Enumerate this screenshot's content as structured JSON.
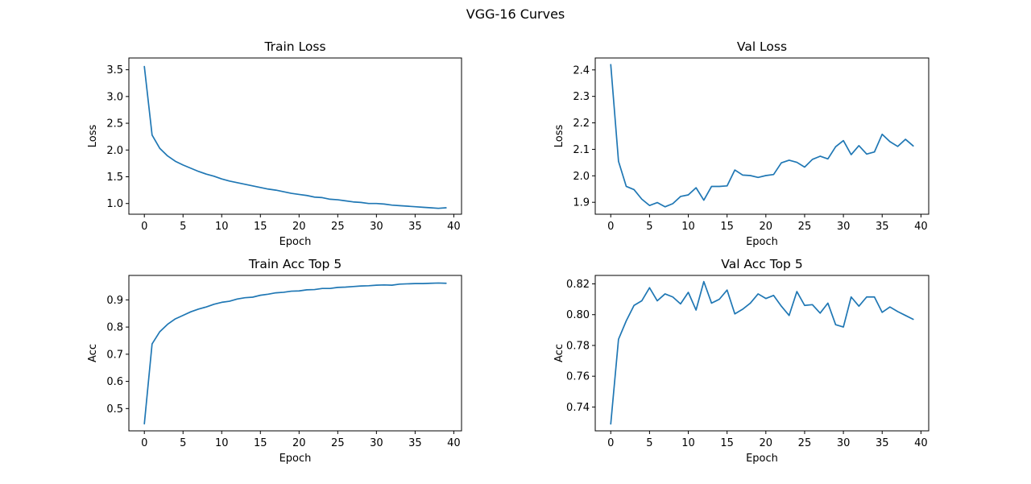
{
  "figure": {
    "title": "VGG-16 Curves"
  },
  "colors": {
    "line": "#1f77b4",
    "axes": "#000000",
    "background": "#ffffff"
  },
  "chart_data": [
    {
      "type": "line",
      "title": "Train Loss",
      "xlabel": "Epoch",
      "ylabel": "Loss",
      "xlim": [
        -2,
        41
      ],
      "ylim": [
        0.8,
        3.72
      ],
      "xticks": [
        0,
        5,
        10,
        15,
        20,
        25,
        30,
        35,
        40
      ],
      "yticks": [
        1.0,
        1.5,
        2.0,
        2.5,
        3.0,
        3.5
      ],
      "yticklabels": [
        "1.0",
        "1.5",
        "2.0",
        "2.5",
        "3.0",
        "3.5"
      ],
      "grid": false,
      "x": [
        0,
        1,
        2,
        3,
        4,
        5,
        6,
        7,
        8,
        9,
        10,
        11,
        12,
        13,
        14,
        15,
        16,
        17,
        18,
        19,
        20,
        21,
        22,
        23,
        24,
        25,
        26,
        27,
        28,
        29,
        30,
        31,
        32,
        33,
        34,
        35,
        36,
        37,
        38,
        39
      ],
      "values": [
        3.56,
        2.28,
        2.03,
        1.89,
        1.79,
        1.72,
        1.66,
        1.6,
        1.55,
        1.51,
        1.46,
        1.42,
        1.39,
        1.36,
        1.33,
        1.3,
        1.27,
        1.25,
        1.22,
        1.19,
        1.17,
        1.15,
        1.12,
        1.11,
        1.08,
        1.07,
        1.05,
        1.03,
        1.02,
        1.0,
        1.0,
        0.99,
        0.97,
        0.96,
        0.95,
        0.94,
        0.93,
        0.92,
        0.91,
        0.92
      ]
    },
    {
      "type": "line",
      "title": "Val Loss",
      "xlabel": "Epoch",
      "ylabel": "Loss",
      "xlim": [
        -2,
        41
      ],
      "ylim": [
        1.855,
        2.445
      ],
      "xticks": [
        0,
        5,
        10,
        15,
        20,
        25,
        30,
        35,
        40
      ],
      "yticks": [
        1.9,
        2.0,
        2.1,
        2.2,
        2.3,
        2.4
      ],
      "yticklabels": [
        "1.9",
        "2.0",
        "2.1",
        "2.2",
        "2.3",
        "2.4"
      ],
      "grid": false,
      "x": [
        0,
        1,
        2,
        3,
        4,
        5,
        6,
        7,
        8,
        9,
        10,
        11,
        12,
        13,
        14,
        15,
        16,
        17,
        18,
        19,
        20,
        21,
        22,
        23,
        24,
        25,
        26,
        27,
        28,
        29,
        30,
        31,
        32,
        33,
        34,
        35,
        36,
        37,
        38,
        39
      ],
      "values": [
        2.42,
        2.055,
        1.96,
        1.948,
        1.912,
        1.888,
        1.899,
        1.883,
        1.895,
        1.922,
        1.928,
        1.955,
        1.908,
        1.96,
        1.96,
        1.962,
        2.022,
        2.003,
        2.001,
        1.994,
        2.001,
        2.005,
        2.049,
        2.059,
        2.051,
        2.033,
        2.062,
        2.074,
        2.064,
        2.11,
        2.133,
        2.08,
        2.114,
        2.082,
        2.09,
        2.157,
        2.129,
        2.111,
        2.138,
        2.113
      ]
    },
    {
      "type": "line",
      "title": "Train Acc Top 5",
      "xlabel": "Epoch",
      "ylabel": "Acc",
      "xlim": [
        -2,
        41
      ],
      "ylim": [
        0.418,
        0.99
      ],
      "xticks": [
        0,
        5,
        10,
        15,
        20,
        25,
        30,
        35,
        40
      ],
      "yticks": [
        0.5,
        0.6,
        0.7,
        0.8,
        0.9
      ],
      "yticklabels": [
        "0.5",
        "0.6",
        "0.7",
        "0.8",
        "0.9"
      ],
      "grid": false,
      "x": [
        0,
        1,
        2,
        3,
        4,
        5,
        6,
        7,
        8,
        9,
        10,
        11,
        12,
        13,
        14,
        15,
        16,
        17,
        18,
        19,
        20,
        21,
        22,
        23,
        24,
        25,
        26,
        27,
        28,
        29,
        30,
        31,
        32,
        33,
        34,
        35,
        36,
        37,
        38,
        39
      ],
      "values": [
        0.444,
        0.738,
        0.783,
        0.81,
        0.83,
        0.843,
        0.856,
        0.866,
        0.874,
        0.884,
        0.891,
        0.895,
        0.903,
        0.908,
        0.91,
        0.917,
        0.921,
        0.926,
        0.928,
        0.932,
        0.933,
        0.937,
        0.938,
        0.942,
        0.942,
        0.946,
        0.947,
        0.949,
        0.951,
        0.952,
        0.954,
        0.955,
        0.954,
        0.958,
        0.959,
        0.96,
        0.96,
        0.961,
        0.962,
        0.961
      ]
    },
    {
      "type": "line",
      "title": "Val Acc Top 5",
      "xlabel": "Epoch",
      "ylabel": "Acc",
      "xlim": [
        -2,
        41
      ],
      "ylim": [
        0.7245,
        0.8255
      ],
      "xticks": [
        0,
        5,
        10,
        15,
        20,
        25,
        30,
        35,
        40
      ],
      "yticks": [
        0.74,
        0.76,
        0.78,
        0.8,
        0.82
      ],
      "yticklabels": [
        "0.74",
        "0.76",
        "0.78",
        "0.80",
        "0.82"
      ],
      "grid": false,
      "x": [
        0,
        1,
        2,
        3,
        4,
        5,
        6,
        7,
        8,
        9,
        10,
        11,
        12,
        13,
        14,
        15,
        16,
        17,
        18,
        19,
        20,
        21,
        22,
        23,
        24,
        25,
        26,
        27,
        28,
        29,
        30,
        31,
        32,
        33,
        34,
        35,
        36,
        37,
        38,
        39
      ],
      "values": [
        0.729,
        0.784,
        0.796,
        0.806,
        0.809,
        0.8175,
        0.809,
        0.8135,
        0.8115,
        0.807,
        0.8145,
        0.803,
        0.8215,
        0.8075,
        0.81,
        0.816,
        0.8005,
        0.8035,
        0.8075,
        0.8135,
        0.8105,
        0.8125,
        0.8055,
        0.7995,
        0.815,
        0.806,
        0.8065,
        0.801,
        0.8075,
        0.7935,
        0.792,
        0.8115,
        0.8055,
        0.8115,
        0.8115,
        0.8015,
        0.805,
        0.802,
        0.7995,
        0.797
      ]
    }
  ]
}
